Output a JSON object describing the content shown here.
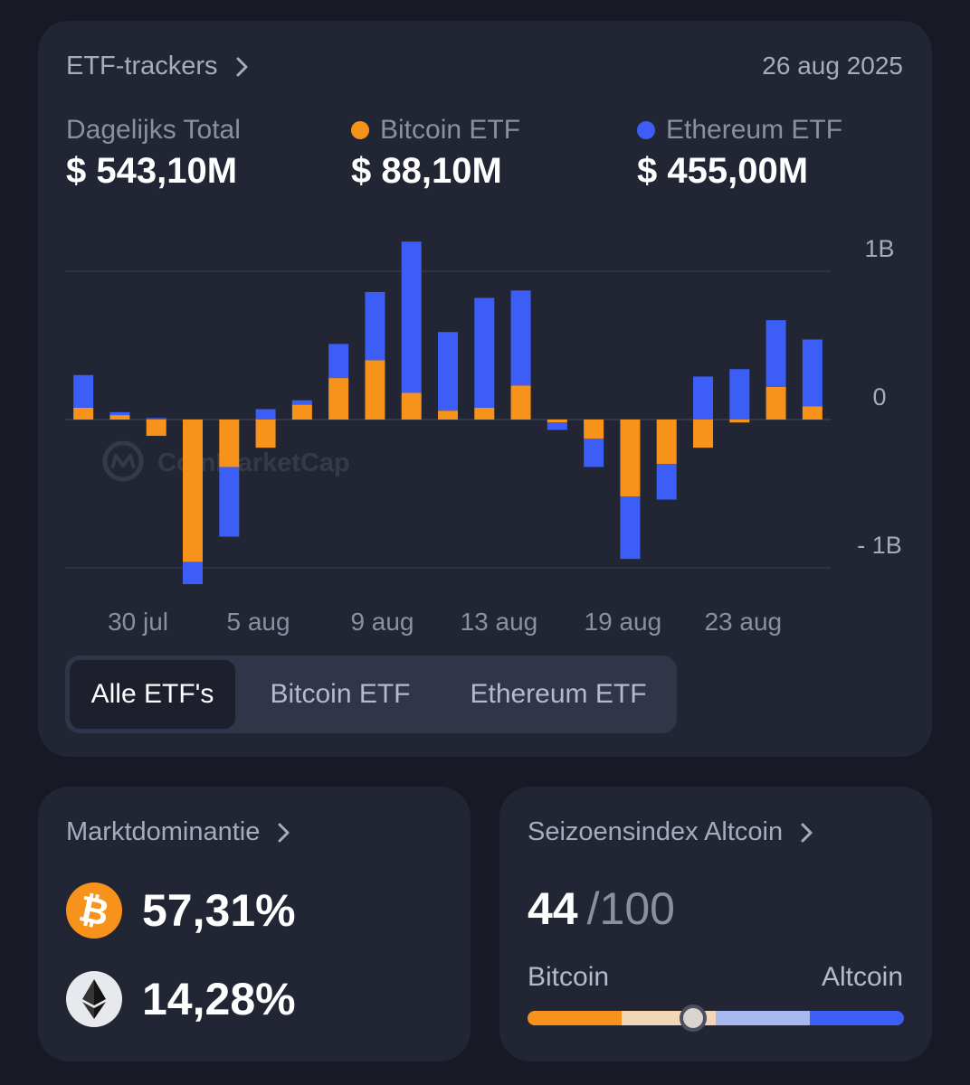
{
  "etf": {
    "title": "ETF-trackers",
    "date": "26 aug 2025",
    "stats": [
      {
        "label": "Dagelijks Total",
        "value": "$ 543,10M",
        "dot_color": ""
      },
      {
        "label": "Bitcoin ETF",
        "value": "$ 88,10M",
        "dot_color": "#f7931a"
      },
      {
        "label": "Ethereum ETF",
        "value": "$ 455,00M",
        "dot_color": "#3c5ef6"
      }
    ],
    "watermark": "CoinMarketCap",
    "tabs": [
      {
        "label": "Alle ETF's",
        "active": true
      },
      {
        "label": "Bitcoin ETF",
        "active": false
      },
      {
        "label": "Ethereum ETF",
        "active": false
      }
    ]
  },
  "chart_data": {
    "type": "bar",
    "stacked": true,
    "ylim": [
      -1,
      1
    ],
    "yticks": [
      {
        "value": 1,
        "label": "1B"
      },
      {
        "value": 0,
        "label": "0"
      },
      {
        "value": -1,
        "label": "- 1B"
      }
    ],
    "xticks": [
      {
        "index": 1.5,
        "label": "30 jul"
      },
      {
        "index": 4.8,
        "label": "5 aug"
      },
      {
        "index": 8.2,
        "label": "9 aug"
      },
      {
        "index": 11.4,
        "label": "13 aug"
      },
      {
        "index": 14.8,
        "label": "19 aug"
      },
      {
        "index": 18.1,
        "label": "23 aug"
      }
    ],
    "series": [
      {
        "color": "#f7931a",
        "values": [
          0.08,
          0.03,
          -0.11,
          -0.96,
          -0.32,
          -0.19,
          0.1,
          0.28,
          0.4,
          0.18,
          0.06,
          0.08,
          0.23,
          -0.02,
          -0.13,
          -0.52,
          -0.3,
          -0.19,
          -0.02,
          0.22,
          0.09
        ]
      },
      {
        "color": "#3c5ef6",
        "values": [
          0.22,
          0.02,
          0.01,
          -0.15,
          -0.47,
          0.07,
          0.03,
          0.23,
          0.46,
          1.02,
          0.53,
          0.74,
          0.64,
          -0.05,
          -0.19,
          -0.42,
          -0.24,
          0.29,
          0.34,
          0.45,
          0.45
        ]
      }
    ]
  },
  "dominance": {
    "title": "Marktdominantie",
    "items": [
      {
        "coin": "bitcoin",
        "value": "57,31%",
        "color": "#f7931a"
      },
      {
        "coin": "ethereum",
        "value": "14,28%",
        "color": "#e7e9ee"
      }
    ]
  },
  "altseason": {
    "title": "Seizoensindex Altcoin",
    "score": "44",
    "max": "/100",
    "left_label": "Bitcoin",
    "right_label": "Altcoin",
    "level": 0.44,
    "segment_colors": [
      "#f7931a",
      "#f2d7b6",
      "#aab8f0",
      "#3c5ef6"
    ]
  }
}
